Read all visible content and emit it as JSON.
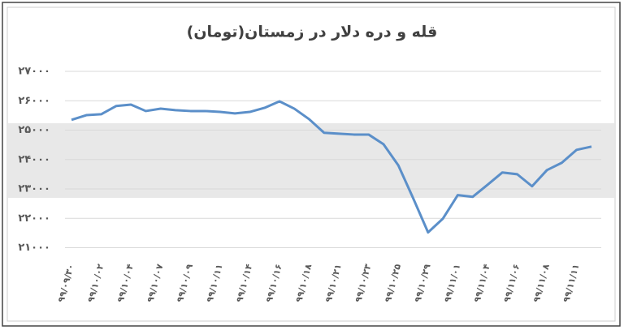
{
  "chart_data": {
    "type": "line",
    "title": "قله و دره دلار در زمستان(تومان)",
    "categories": [
      "۹۹/۰۹/۳۰",
      null,
      "۹۹/۱۰/۰۲",
      null,
      "۹۹/۱۰/۰۴",
      null,
      "۹۹/۱۰/۰۷",
      null,
      "۹۹/۱۰/۰۹",
      null,
      "۹۹/۱۰/۱۱",
      null,
      "۹۹/۱۰/۱۴",
      null,
      "۹۹/۱۰/۱۶",
      null,
      "۹۹/۱۰/۱۸",
      null,
      "۹۹/۱۰/۲۱",
      null,
      "۹۹/۱۰/۲۳",
      null,
      "۹۹/۱۰/۲۵",
      null,
      "۹۹/۱۰/۲۹",
      null,
      "۹۹/۱۱/۰۱",
      null,
      "۹۹/۱۱/۰۴",
      null,
      "۹۹/۱۱/۰۶",
      null,
      "۹۹/۱۱/۰۸",
      null,
      "۹۹/۱۱/۱۱",
      null
    ],
    "values": [
      25350,
      25510,
      25540,
      25820,
      25870,
      25650,
      25730,
      25680,
      25650,
      25650,
      25620,
      25570,
      25620,
      25760,
      25980,
      25730,
      25370,
      24910,
      24880,
      24850,
      24850,
      24520,
      23800,
      22680,
      21520,
      21990,
      22790,
      22730,
      23140,
      23560,
      23500,
      23090,
      23640,
      23890,
      24330,
      24440
    ],
    "color": "#5b8fc9",
    "ylim": [
      20600,
      27000
    ],
    "yticks": [
      {
        "value": 21000,
        "label": "۲۱۰۰۰"
      },
      {
        "value": 22000,
        "label": "۲۲۰۰۰"
      },
      {
        "value": 23000,
        "label": "۲۳۰۰۰"
      },
      {
        "value": 24000,
        "label": "۲۴۰۰۰"
      },
      {
        "value": 25000,
        "label": "۲۵۰۰۰"
      },
      {
        "value": 26000,
        "label": "۲۶۰۰۰"
      },
      {
        "value": 27000,
        "label": "۲۷۰۰۰"
      }
    ],
    "grid": true
  }
}
